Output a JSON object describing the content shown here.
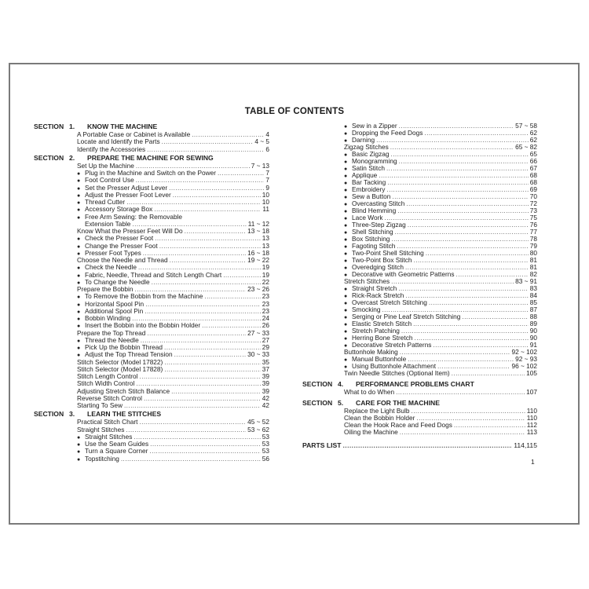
{
  "title": "TABLE OF CONTENTS",
  "page_number": "1",
  "left_column": [
    {
      "type": "section",
      "label": "SECTION",
      "num": "1.",
      "text": "KNOW THE MACHINE"
    },
    {
      "type": "entry",
      "text": "A Portable Case or Cabinet is Available",
      "page": "4"
    },
    {
      "type": "entry",
      "text": "Locate and Identify the Parts",
      "page": "4 ~ 5"
    },
    {
      "type": "entry",
      "text": "Identify the Accessories",
      "page": "6"
    },
    {
      "type": "section",
      "label": "SECTION",
      "num": "2.",
      "text": "PREPARE THE MACHINE FOR SEWING"
    },
    {
      "type": "entry",
      "text": "Set Up the Machine",
      "page": "7 ~ 13"
    },
    {
      "type": "entry",
      "bullet": true,
      "text": "Plug in the Machine and Switch on the Power",
      "page": "7"
    },
    {
      "type": "entry",
      "bullet": true,
      "text": "Foot Control Use",
      "page": "7"
    },
    {
      "type": "entry",
      "bullet": true,
      "text": "Set the Presser Adjust Lever",
      "page": "9"
    },
    {
      "type": "entry",
      "bullet": true,
      "text": "Adjust the Presser Foot Lever",
      "page": "10"
    },
    {
      "type": "entry",
      "bullet": true,
      "text": "Thread Cutter",
      "page": "10"
    },
    {
      "type": "entry",
      "bullet": true,
      "text": "Accessory Storage Box",
      "page": "11"
    },
    {
      "type": "entry",
      "bullet": true,
      "text": "Free Arm Sewing: the Removable",
      "page": ""
    },
    {
      "type": "entry",
      "indent": true,
      "text": "Extension Table",
      "page": "11 ~ 12"
    },
    {
      "type": "entry",
      "text": "Know What the Presser Feet Will Do",
      "page": "13 ~ 18"
    },
    {
      "type": "entry",
      "bullet": true,
      "text": "Check the Presser Foot",
      "page": "13"
    },
    {
      "type": "entry",
      "bullet": true,
      "text": "Change the Presser Foot",
      "page": "13"
    },
    {
      "type": "entry",
      "bullet": true,
      "text": "Presser Foot Types",
      "page": "16 ~ 18"
    },
    {
      "type": "entry",
      "text": "Choose the Needle and Thread",
      "page": "19 ~ 22"
    },
    {
      "type": "entry",
      "bullet": true,
      "text": "Check the Needle",
      "page": "19"
    },
    {
      "type": "entry",
      "bullet": true,
      "text": "Fabric, Needle, Thread and Stitch Length Chart",
      "page": "19"
    },
    {
      "type": "entry",
      "bullet": true,
      "text": "To Change the Needle",
      "page": "22"
    },
    {
      "type": "entry",
      "text": "Prepare the Bobbin",
      "page": "23 ~ 26"
    },
    {
      "type": "entry",
      "bullet": true,
      "text": "To Remove the Bobbin from the Machine",
      "page": "23"
    },
    {
      "type": "entry",
      "bullet": true,
      "text": "Horizontal Spool Pin",
      "page": "23"
    },
    {
      "type": "entry",
      "bullet": true,
      "text": "Additional Spool Pin",
      "page": "23"
    },
    {
      "type": "entry",
      "bullet": true,
      "text": "Bobbin Winding",
      "page": "24"
    },
    {
      "type": "entry",
      "bullet": true,
      "text": "Insert the Bobbin into the Bobbin Holder",
      "page": "26"
    },
    {
      "type": "entry",
      "text": "Prepare the Top Thread",
      "page": "27 ~ 33"
    },
    {
      "type": "entry",
      "bullet": true,
      "text": "Thread the Needle",
      "page": "27"
    },
    {
      "type": "entry",
      "bullet": true,
      "text": "Pick Up the Bobbin Thread",
      "page": "29"
    },
    {
      "type": "entry",
      "bullet": true,
      "text": "Adjust the Top Thread Tension",
      "page": "30 ~ 33"
    },
    {
      "type": "entry",
      "text": "Stitch Selector (Model 17822)",
      "page": "35"
    },
    {
      "type": "entry",
      "text": "Stitch Selector (Model 17828)",
      "page": "37"
    },
    {
      "type": "entry",
      "text": "Stitch Length Control",
      "page": "39"
    },
    {
      "type": "entry",
      "text": "Stitch Width Control",
      "page": "39"
    },
    {
      "type": "entry",
      "text": "Adjusting Stretch Stitch Balance",
      "page": "39"
    },
    {
      "type": "entry",
      "text": "Reverse Stitch Control",
      "page": "42"
    },
    {
      "type": "entry",
      "text": "Starting To Sew",
      "page": "42"
    },
    {
      "type": "section",
      "label": "SECTION",
      "num": "3.",
      "text": "LEARN THE STITCHES"
    },
    {
      "type": "entry",
      "text": "Practical Stitch Chart",
      "page": "45 ~ 52"
    },
    {
      "type": "entry",
      "text": "Straight Stitches",
      "page": "53 ~ 62"
    },
    {
      "type": "entry",
      "bullet": true,
      "text": "Straight Stitches",
      "page": "53"
    },
    {
      "type": "entry",
      "bullet": true,
      "text": "Use the Seam Guides",
      "page": "53"
    },
    {
      "type": "entry",
      "bullet": true,
      "text": "Turn a Square Corner",
      "page": "53"
    },
    {
      "type": "entry",
      "bullet": true,
      "text": "Topstitching",
      "page": "56"
    }
  ],
  "right_column": [
    {
      "type": "entry",
      "bullet": true,
      "text": "Sew in a Zipper",
      "page": "57 ~ 58"
    },
    {
      "type": "entry",
      "bullet": true,
      "text": "Dropping the Feed Dogs",
      "page": "62"
    },
    {
      "type": "entry",
      "bullet": true,
      "text": "Darning",
      "page": "62"
    },
    {
      "type": "entry",
      "text": "Zigzag Stitches",
      "page": "65 ~ 82"
    },
    {
      "type": "entry",
      "bullet": true,
      "text": "Basic Zigzag",
      "page": "65"
    },
    {
      "type": "entry",
      "bullet": true,
      "text": "Monogramming",
      "page": "66"
    },
    {
      "type": "entry",
      "bullet": true,
      "text": "Satin Stitch",
      "page": "67"
    },
    {
      "type": "entry",
      "bullet": true,
      "text": "Applique",
      "page": "68"
    },
    {
      "type": "entry",
      "bullet": true,
      "text": "Bar Tacking",
      "page": "68"
    },
    {
      "type": "entry",
      "bullet": true,
      "text": "Embroidery",
      "page": "69"
    },
    {
      "type": "entry",
      "bullet": true,
      "text": "Sew a Button",
      "page": "70"
    },
    {
      "type": "entry",
      "bullet": true,
      "text": "Overcasting Stitch",
      "page": "72"
    },
    {
      "type": "entry",
      "bullet": true,
      "text": "Blind Hemming",
      "page": "73"
    },
    {
      "type": "entry",
      "bullet": true,
      "text": "Lace Work",
      "page": "75"
    },
    {
      "type": "entry",
      "bullet": true,
      "text": "Three-Step Zigzag",
      "page": "76"
    },
    {
      "type": "entry",
      "bullet": true,
      "text": "Shell Stitching",
      "page": "77"
    },
    {
      "type": "entry",
      "bullet": true,
      "text": "Box Stitching",
      "page": "78"
    },
    {
      "type": "entry",
      "bullet": true,
      "text": "Fagoting Stitch",
      "page": "79"
    },
    {
      "type": "entry",
      "bullet": true,
      "text": "Two-Point Shell Stitching",
      "page": "80"
    },
    {
      "type": "entry",
      "bullet": true,
      "text": "Two-Point Box Stitch",
      "page": "81"
    },
    {
      "type": "entry",
      "bullet": true,
      "text": "Overedging Stitch",
      "page": "81"
    },
    {
      "type": "entry",
      "bullet": true,
      "text": "Decorative with Geometric Patterns",
      "page": "82"
    },
    {
      "type": "entry",
      "text": "Stretch Stitches",
      "page": "83 ~ 91"
    },
    {
      "type": "entry",
      "bullet": true,
      "text": "Straight Stretch",
      "page": "83"
    },
    {
      "type": "entry",
      "bullet": true,
      "text": "Rick-Rack Stretch",
      "page": "84"
    },
    {
      "type": "entry",
      "bullet": true,
      "text": "Overcast Stretch Stitching",
      "page": "85"
    },
    {
      "type": "entry",
      "bullet": true,
      "text": "Smocking",
      "page": "87"
    },
    {
      "type": "entry",
      "bullet": true,
      "text": "Serging or Pine Leaf Stretch Stitching",
      "page": "88"
    },
    {
      "type": "entry",
      "bullet": true,
      "text": "Elastic Stretch Stitch",
      "page": "89"
    },
    {
      "type": "entry",
      "bullet": true,
      "text": "Stretch Patching",
      "page": "90"
    },
    {
      "type": "entry",
      "bullet": true,
      "text": "Herring Bone Stretch",
      "page": "90"
    },
    {
      "type": "entry",
      "bullet": true,
      "text": "Decorative Stretch Patterns",
      "page": "91"
    },
    {
      "type": "entry",
      "text": "Buttonhole Making",
      "page": "92 ~ 102"
    },
    {
      "type": "entry",
      "bullet": true,
      "text": "Manual Buttonhole",
      "page": "92 ~ 93"
    },
    {
      "type": "entry",
      "bullet": true,
      "text": "Using Buttonhole Attachment",
      "page": "96 ~ 102"
    },
    {
      "type": "entry",
      "text": "Twin Needle Stitches (Optional Item)",
      "page": "105"
    },
    {
      "type": "section",
      "label": "SECTION",
      "num": "4.",
      "text": "PERFORMANCE PROBLEMS CHART"
    },
    {
      "type": "entry",
      "text": "What to do When",
      "page": "107"
    },
    {
      "type": "section",
      "label": "SECTION",
      "num": "5.",
      "text": "CARE FOR THE MACHINE"
    },
    {
      "type": "entry",
      "text": "Replace the Light Bulb",
      "page": "110"
    },
    {
      "type": "entry",
      "text": "Clean the Bobbin Holder",
      "page": "110"
    },
    {
      "type": "entry",
      "text": "Clean the Hook Race and Feed Dogs",
      "page": "112"
    },
    {
      "type": "entry",
      "text": "Oiling the Machine",
      "page": "113"
    },
    {
      "type": "parts",
      "text": "PARTS LIST",
      "page": "114,115"
    }
  ]
}
